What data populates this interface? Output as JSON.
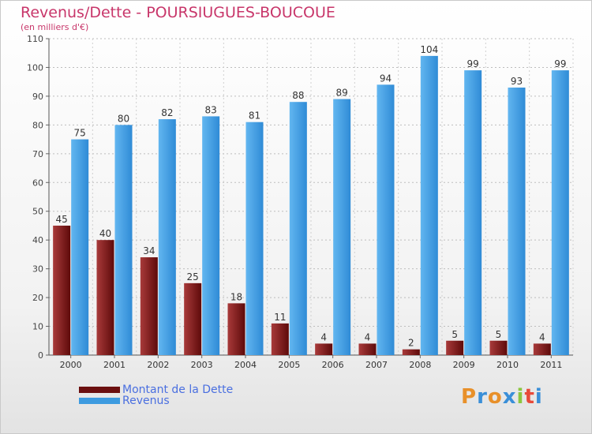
{
  "title": "Revenus/Dette - POURSIUGUES-BOUCOUE",
  "subtitle": "(en milliers d'€)",
  "logo": "Proxiti",
  "colors": {
    "debt": "#8b1a1a",
    "debt_dark": "#5a0a0a",
    "revenue": "#3d9be0",
    "revenue_light": "#5ab0ee",
    "title": "#c8366a",
    "legend_text": "#4a6fe0"
  },
  "chart_data": {
    "type": "bar",
    "categories": [
      "2000",
      "2001",
      "2002",
      "2003",
      "2004",
      "2005",
      "2006",
      "2007",
      "2008",
      "2009",
      "2010",
      "2011"
    ],
    "series": [
      {
        "name": "Montant de la Dette",
        "values": [
          45,
          40,
          34,
          25,
          18,
          11,
          4,
          4,
          2,
          5,
          5,
          4
        ]
      },
      {
        "name": "Revenus",
        "values": [
          75,
          80,
          82,
          83,
          81,
          88,
          89,
          94,
          104,
          99,
          93,
          99
        ]
      }
    ],
    "ylim": [
      0,
      110
    ],
    "yticks": [
      0,
      10,
      20,
      30,
      40,
      50,
      60,
      70,
      80,
      90,
      100,
      110
    ],
    "grid": true,
    "legend": "bottom-left"
  }
}
